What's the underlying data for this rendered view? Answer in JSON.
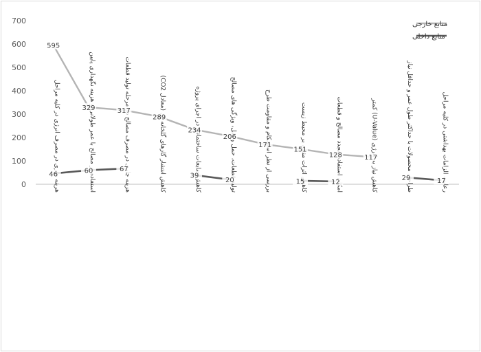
{
  "chart_data": {
    "type": "line",
    "ylim": [
      0,
      700
    ],
    "yticks": [
      0,
      100,
      200,
      300,
      400,
      500,
      600,
      700
    ],
    "grid": false,
    "legend_position": "top-right",
    "colors": {
      "external": "#b4b4b4",
      "internal": "#595959"
    },
    "categories": [
      "هرینه جاری در مصرف انرژی در کلیه مراحل",
      "استفاده از مصالح با عمر طولانی و هزینه نگهداری پایین",
      "هزینه جاری در مصرف مصالح در مرحله تولید قطعات",
      "کاهش انتشار گازهای گلخانه ای (معادل CO2)",
      "کاهش ضایعات ساختمانی در اجرای پروژه",
      "تولید قطعات، حمل و نقل، ویژگی های مصالح",
      "بررسی از نظر استحکام و مقاومت طرح",
      "کاهش اثرات منفی بر محیط زیست",
      "امکان استفاده مجدد مصالح و قطعات",
      "کاهش نیاز به انرژی (U-Value) کمتر",
      "طراحی محصولات با حداکثر طول عمر و حداقل نیاز",
      "رعایت الزامات بهداشتی در کلیه مراحل"
    ],
    "series": [
      {
        "name": "منابع خارجی",
        "values": [
          595,
          329,
          317,
          289,
          234,
          206,
          171,
          151,
          128,
          117,
          null,
          null
        ]
      },
      {
        "name": "منابع داخلی",
        "values": [
          46,
          60,
          67,
          null,
          39,
          20,
          null,
          15,
          12,
          null,
          29,
          17
        ]
      }
    ]
  }
}
